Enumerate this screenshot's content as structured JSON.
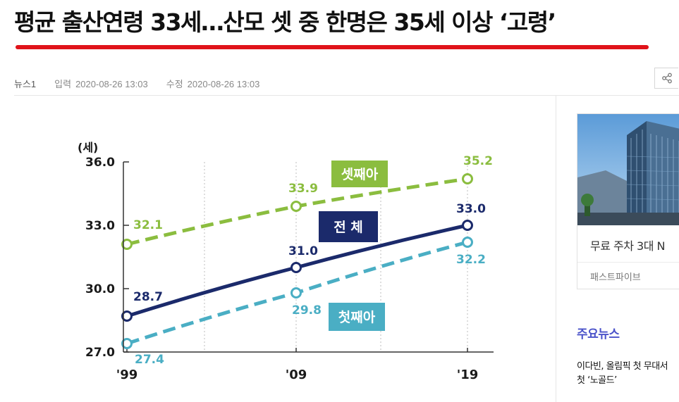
{
  "article": {
    "headline": "평균 출산연령 33세…산모 셋 중 한명은 35세 이상 ‘고령’",
    "source": "뉴스1",
    "input_label": "입력",
    "input_time": "2020-08-26 13:03",
    "edit_label": "수정",
    "edit_time": "2020-08-26 13:03"
  },
  "share": {
    "icon": "share-icon"
  },
  "chart_data": {
    "type": "line",
    "ylabel": "(세)",
    "ylim": [
      27.0,
      36.0
    ],
    "yticks": [
      "36.0",
      "33.0",
      "30.0",
      "27.0"
    ],
    "categories": [
      "'99",
      "'09",
      "'19"
    ],
    "series": [
      {
        "name": "셋째아",
        "values": [
          32.1,
          33.9,
          35.2
        ],
        "labels": [
          "32.1",
          "33.9",
          "35.2"
        ],
        "color": "#8bbd3f",
        "style": "dashed"
      },
      {
        "name": "전 체",
        "values": [
          28.7,
          31.0,
          33.0
        ],
        "labels": [
          "28.7",
          "31.0",
          "33.0"
        ],
        "color": "#1b2a6b",
        "style": "solid"
      },
      {
        "name": "첫째아",
        "values": [
          27.4,
          29.8,
          32.2
        ],
        "labels": [
          "27.4",
          "29.8",
          "32.2"
        ],
        "color": "#4aaec4",
        "style": "dashed"
      }
    ]
  },
  "sidebar": {
    "ad": {
      "title": "무료 주차 3대 N",
      "brand": "패스트파이브"
    },
    "news": {
      "heading": "주요뉴스",
      "items": [
        {
          "line1": "이다빈, 올림픽 첫 무대서",
          "line2": "첫 ‘노골드’"
        }
      ]
    }
  }
}
